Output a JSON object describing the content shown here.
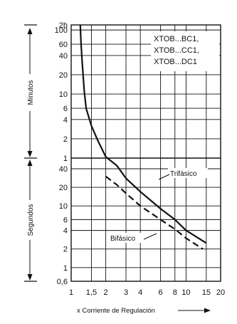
{
  "chart_data": {
    "type": "line",
    "title": "",
    "xlabel": "x Corriente de Regulación",
    "x_ticks": [
      {
        "v": 1,
        "label": "1"
      },
      {
        "v": 1.5,
        "label": "1,5"
      },
      {
        "v": 2,
        "label": "2"
      },
      {
        "v": 3,
        "label": "3"
      },
      {
        "v": 4,
        "label": "4"
      },
      {
        "v": 6,
        "label": "6"
      },
      {
        "v": 8,
        "label": "8"
      },
      {
        "v": 10,
        "label": "10"
      },
      {
        "v": 15,
        "label": "15"
      },
      {
        "v": 20,
        "label": "20"
      }
    ],
    "xlim": [
      1,
      20
    ],
    "x_scale": "log",
    "y_ticks": [
      {
        "label": "2h"
      },
      {
        "label": "100"
      },
      {
        "label": "60"
      },
      {
        "label": "40"
      },
      {
        "label": "20"
      },
      {
        "label": "10"
      },
      {
        "label": "6"
      },
      {
        "label": "4"
      },
      {
        "label": "2"
      },
      {
        "label": "1"
      },
      {
        "label": "40"
      },
      {
        "label": "20"
      },
      {
        "label": "10"
      },
      {
        "label": "6"
      },
      {
        "label": "4"
      },
      {
        "label": "2"
      },
      {
        "label": "1"
      },
      {
        "label": "0,6"
      }
    ],
    "y_sections": [
      {
        "label": "Minutos",
        "from_tick": 0,
        "to_tick": 9
      },
      {
        "label": "Segundos",
        "from_tick": 10,
        "to_tick": 17
      }
    ],
    "y_scale": "log",
    "grid": true,
    "legend_box": [
      "XTOB...BC1,",
      "XTOB...CC1,",
      "XTOB...DC1"
    ],
    "series": [
      {
        "name": "Trifásico",
        "style": "solid",
        "points": [
          [
            1.2,
            120
          ],
          [
            1.22,
            60
          ],
          [
            1.25,
            30
          ],
          [
            1.3,
            11
          ],
          [
            1.35,
            6
          ],
          [
            1.5,
            3.2
          ],
          [
            1.7,
            1.9
          ],
          [
            2,
            1.05
          ],
          [
            2.5,
            45
          ],
          [
            3,
            28
          ],
          [
            4,
            17
          ],
          [
            6,
            9
          ],
          [
            8,
            6
          ],
          [
            10,
            4
          ],
          [
            15,
            2.5
          ]
        ]
      },
      {
        "name": "Bifásico",
        "style": "dashed",
        "points": [
          [
            2,
            30
          ],
          [
            2.5,
            22
          ],
          [
            3,
            16
          ],
          [
            4,
            10
          ],
          [
            6,
            6
          ],
          [
            8,
            4.2
          ],
          [
            10,
            3
          ],
          [
            14,
            2
          ]
        ]
      }
    ],
    "annotations": [
      "Trifásico",
      "Bifásico"
    ]
  }
}
